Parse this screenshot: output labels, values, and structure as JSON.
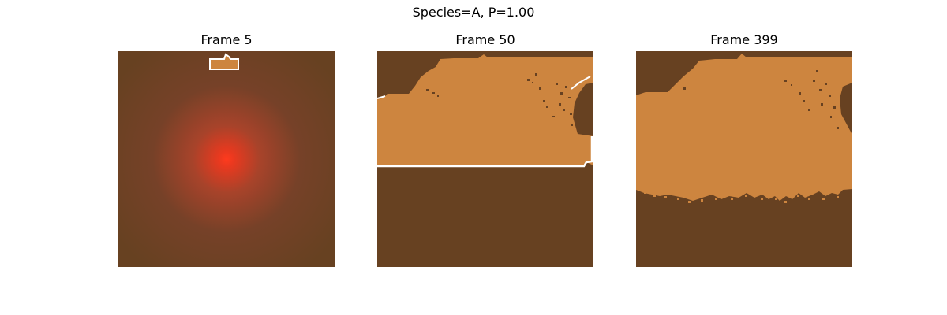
{
  "figure_title": "Species=A, P=1.00",
  "colors": {
    "background_soil": "#674121",
    "colonized": "#cd853f",
    "hotspot": "#ff3a1e",
    "front_outline": "#ffffff"
  },
  "chart_data": [
    {
      "type": "heatmap",
      "title": "Frame 5"
    },
    {
      "type": "heatmap",
      "title": "Frame 50"
    },
    {
      "type": "heatmap",
      "title": "Frame 399"
    }
  ]
}
